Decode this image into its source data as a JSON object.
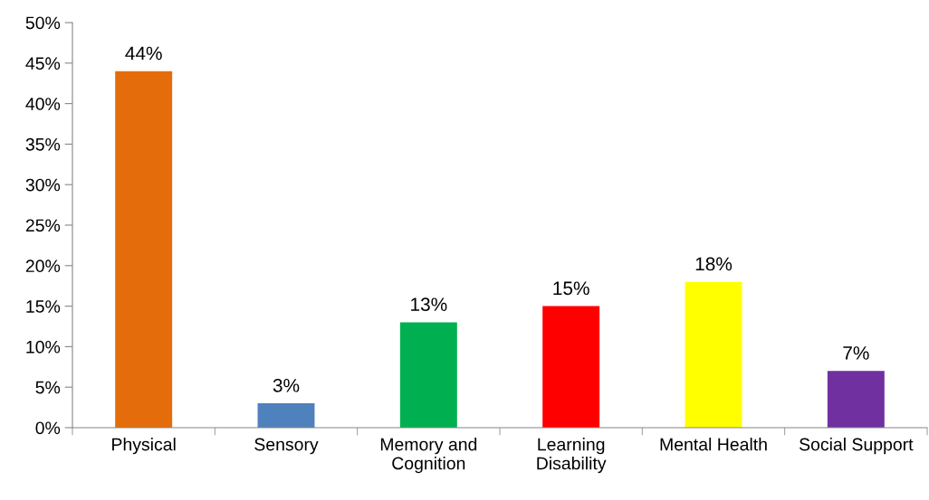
{
  "chart_data": {
    "type": "bar",
    "categories": [
      "Physical",
      "Sensory",
      "Memory and\nCognition",
      "Learning\nDisability",
      "Mental Health",
      "Social Support"
    ],
    "values": [
      44,
      3,
      13,
      15,
      18,
      7
    ],
    "colors": [
      "#e46c0a",
      "#4f81bd",
      "#00b050",
      "#ff0000",
      "#ffff00",
      "#7030a0"
    ],
    "value_labels": [
      "44%",
      "3%",
      "13%",
      "15%",
      "18%",
      "7%"
    ],
    "ylim": [
      0,
      50
    ],
    "yticks": [
      {
        "value": 0,
        "label": "0%"
      },
      {
        "value": 5,
        "label": "5%"
      },
      {
        "value": 10,
        "label": "10%"
      },
      {
        "value": 15,
        "label": "15%"
      },
      {
        "value": 20,
        "label": "20%"
      },
      {
        "value": 25,
        "label": "25%"
      },
      {
        "value": 30,
        "label": "30%"
      },
      {
        "value": 35,
        "label": "35%"
      },
      {
        "value": 40,
        "label": "40%"
      },
      {
        "value": 45,
        "label": "45%"
      },
      {
        "value": 50,
        "label": "50%"
      }
    ],
    "grid": false,
    "legend": false
  }
}
